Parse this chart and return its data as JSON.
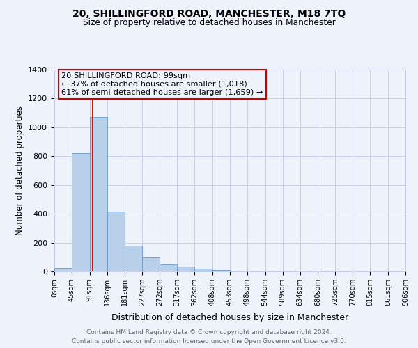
{
  "title1": "20, SHILLINGFORD ROAD, MANCHESTER, M18 7TQ",
  "title2": "Size of property relative to detached houses in Manchester",
  "bar_values": [
    25,
    820,
    1070,
    415,
    180,
    100,
    50,
    35,
    20,
    10,
    0,
    0,
    0,
    0,
    0,
    0,
    0,
    0,
    0,
    0
  ],
  "bin_edges": [
    0,
    45,
    91,
    136,
    181,
    227,
    272,
    317,
    362,
    408,
    453,
    498,
    544,
    589,
    634,
    680,
    725,
    770,
    815,
    861,
    906
  ],
  "bin_labels": [
    "0sqm",
    "45sqm",
    "91sqm",
    "136sqm",
    "181sqm",
    "227sqm",
    "272sqm",
    "317sqm",
    "362sqm",
    "408sqm",
    "453sqm",
    "498sqm",
    "544sqm",
    "589sqm",
    "634sqm",
    "680sqm",
    "725sqm",
    "770sqm",
    "815sqm",
    "861sqm",
    "906sqm"
  ],
  "bar_color": "#b8d0ea",
  "bar_edge_color": "#6699cc",
  "vline_x": 99,
  "vline_color": "#cc0000",
  "ylabel": "Number of detached properties",
  "xlabel": "Distribution of detached houses by size in Manchester",
  "ylim": [
    0,
    1400
  ],
  "yticks": [
    0,
    200,
    400,
    600,
    800,
    1000,
    1200,
    1400
  ],
  "annotation_line1": "20 SHILLINGFORD ROAD: 99sqm",
  "annotation_line2": "← 37% of detached houses are smaller (1,018)",
  "annotation_line3": "61% of semi-detached houses are larger (1,659) →",
  "annotation_box_color": "#cc0000",
  "bg_color": "#eef2fb",
  "grid_color": "#c5cfe8",
  "footer_line1": "Contains HM Land Registry data © Crown copyright and database right 2024.",
  "footer_line2": "Contains public sector information licensed under the Open Government Licence v3.0."
}
